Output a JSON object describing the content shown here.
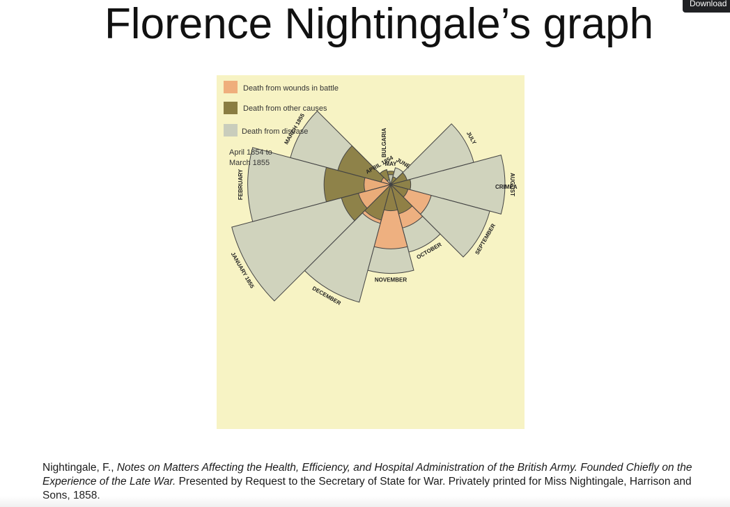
{
  "title": "Florence Nightingale’s graph",
  "download_button": {
    "label": "Download"
  },
  "figure": {
    "legend": [
      {
        "label": "Death from wounds in battle",
        "color": "#efae7c"
      },
      {
        "label": "Death from other causes",
        "color": "#8a7d42"
      },
      {
        "label": "Death from disease",
        "color": "#c9cdbc"
      }
    ],
    "period": [
      "April 1854 to",
      "March 1855"
    ],
    "months": [
      {
        "label": "APRIL 1854",
        "disease": 0.6,
        "other": 5.6,
        "wounds": 0.0
      },
      {
        "label": "MAY",
        "disease": 2.3,
        "other": 4.2,
        "wounds": 0.0
      },
      {
        "label": "JUNE",
        "disease": 7.1,
        "other": 1.5,
        "wounds": 0.0
      },
      {
        "label": "JULY",
        "disease": 172,
        "other": 6.6,
        "wounds": 0.0
      },
      {
        "label": "AUGUST",
        "disease": 304,
        "other": 9.3,
        "wounds": 0.0
      },
      {
        "label": "SEPTEMBER",
        "disease": 245,
        "other": 7.4,
        "wounds": 40.9
      },
      {
        "label": "OCTOBER",
        "disease": 114,
        "other": 21.5,
        "wounds": 47.1
      },
      {
        "label": "NOVEMBER",
        "disease": 184,
        "other": 16.0,
        "wounds": 96.4
      },
      {
        "label": "DECEMBER",
        "disease": 346,
        "other": 31.5,
        "wounds": 37.6
      },
      {
        "label": "JANUARY 1855",
        "disease": 632,
        "other": 60.9,
        "wounds": 26.1
      },
      {
        "label": "FEBRUARY",
        "disease": 477,
        "other": 103.8,
        "wounds": 16.6
      },
      {
        "label": "MARCH 1855",
        "disease": 252,
        "other": 70.2,
        "wounds": 2.3
      }
    ],
    "annotations": [
      "BULGARIA",
      "CRIMEA"
    ]
  },
  "citation": {
    "part1": "Nightingale, F., ",
    "part2_italic": "Notes on Matters Affecting the Health, Efficiency, and Hospital Administration of the British Army. Founded Chiefly on the Experience of the Late War.",
    "part3": " Presented by Request to the Secretary of State for War. Privately printed for Miss Nightingale, Harrison and Sons, 1858."
  }
}
